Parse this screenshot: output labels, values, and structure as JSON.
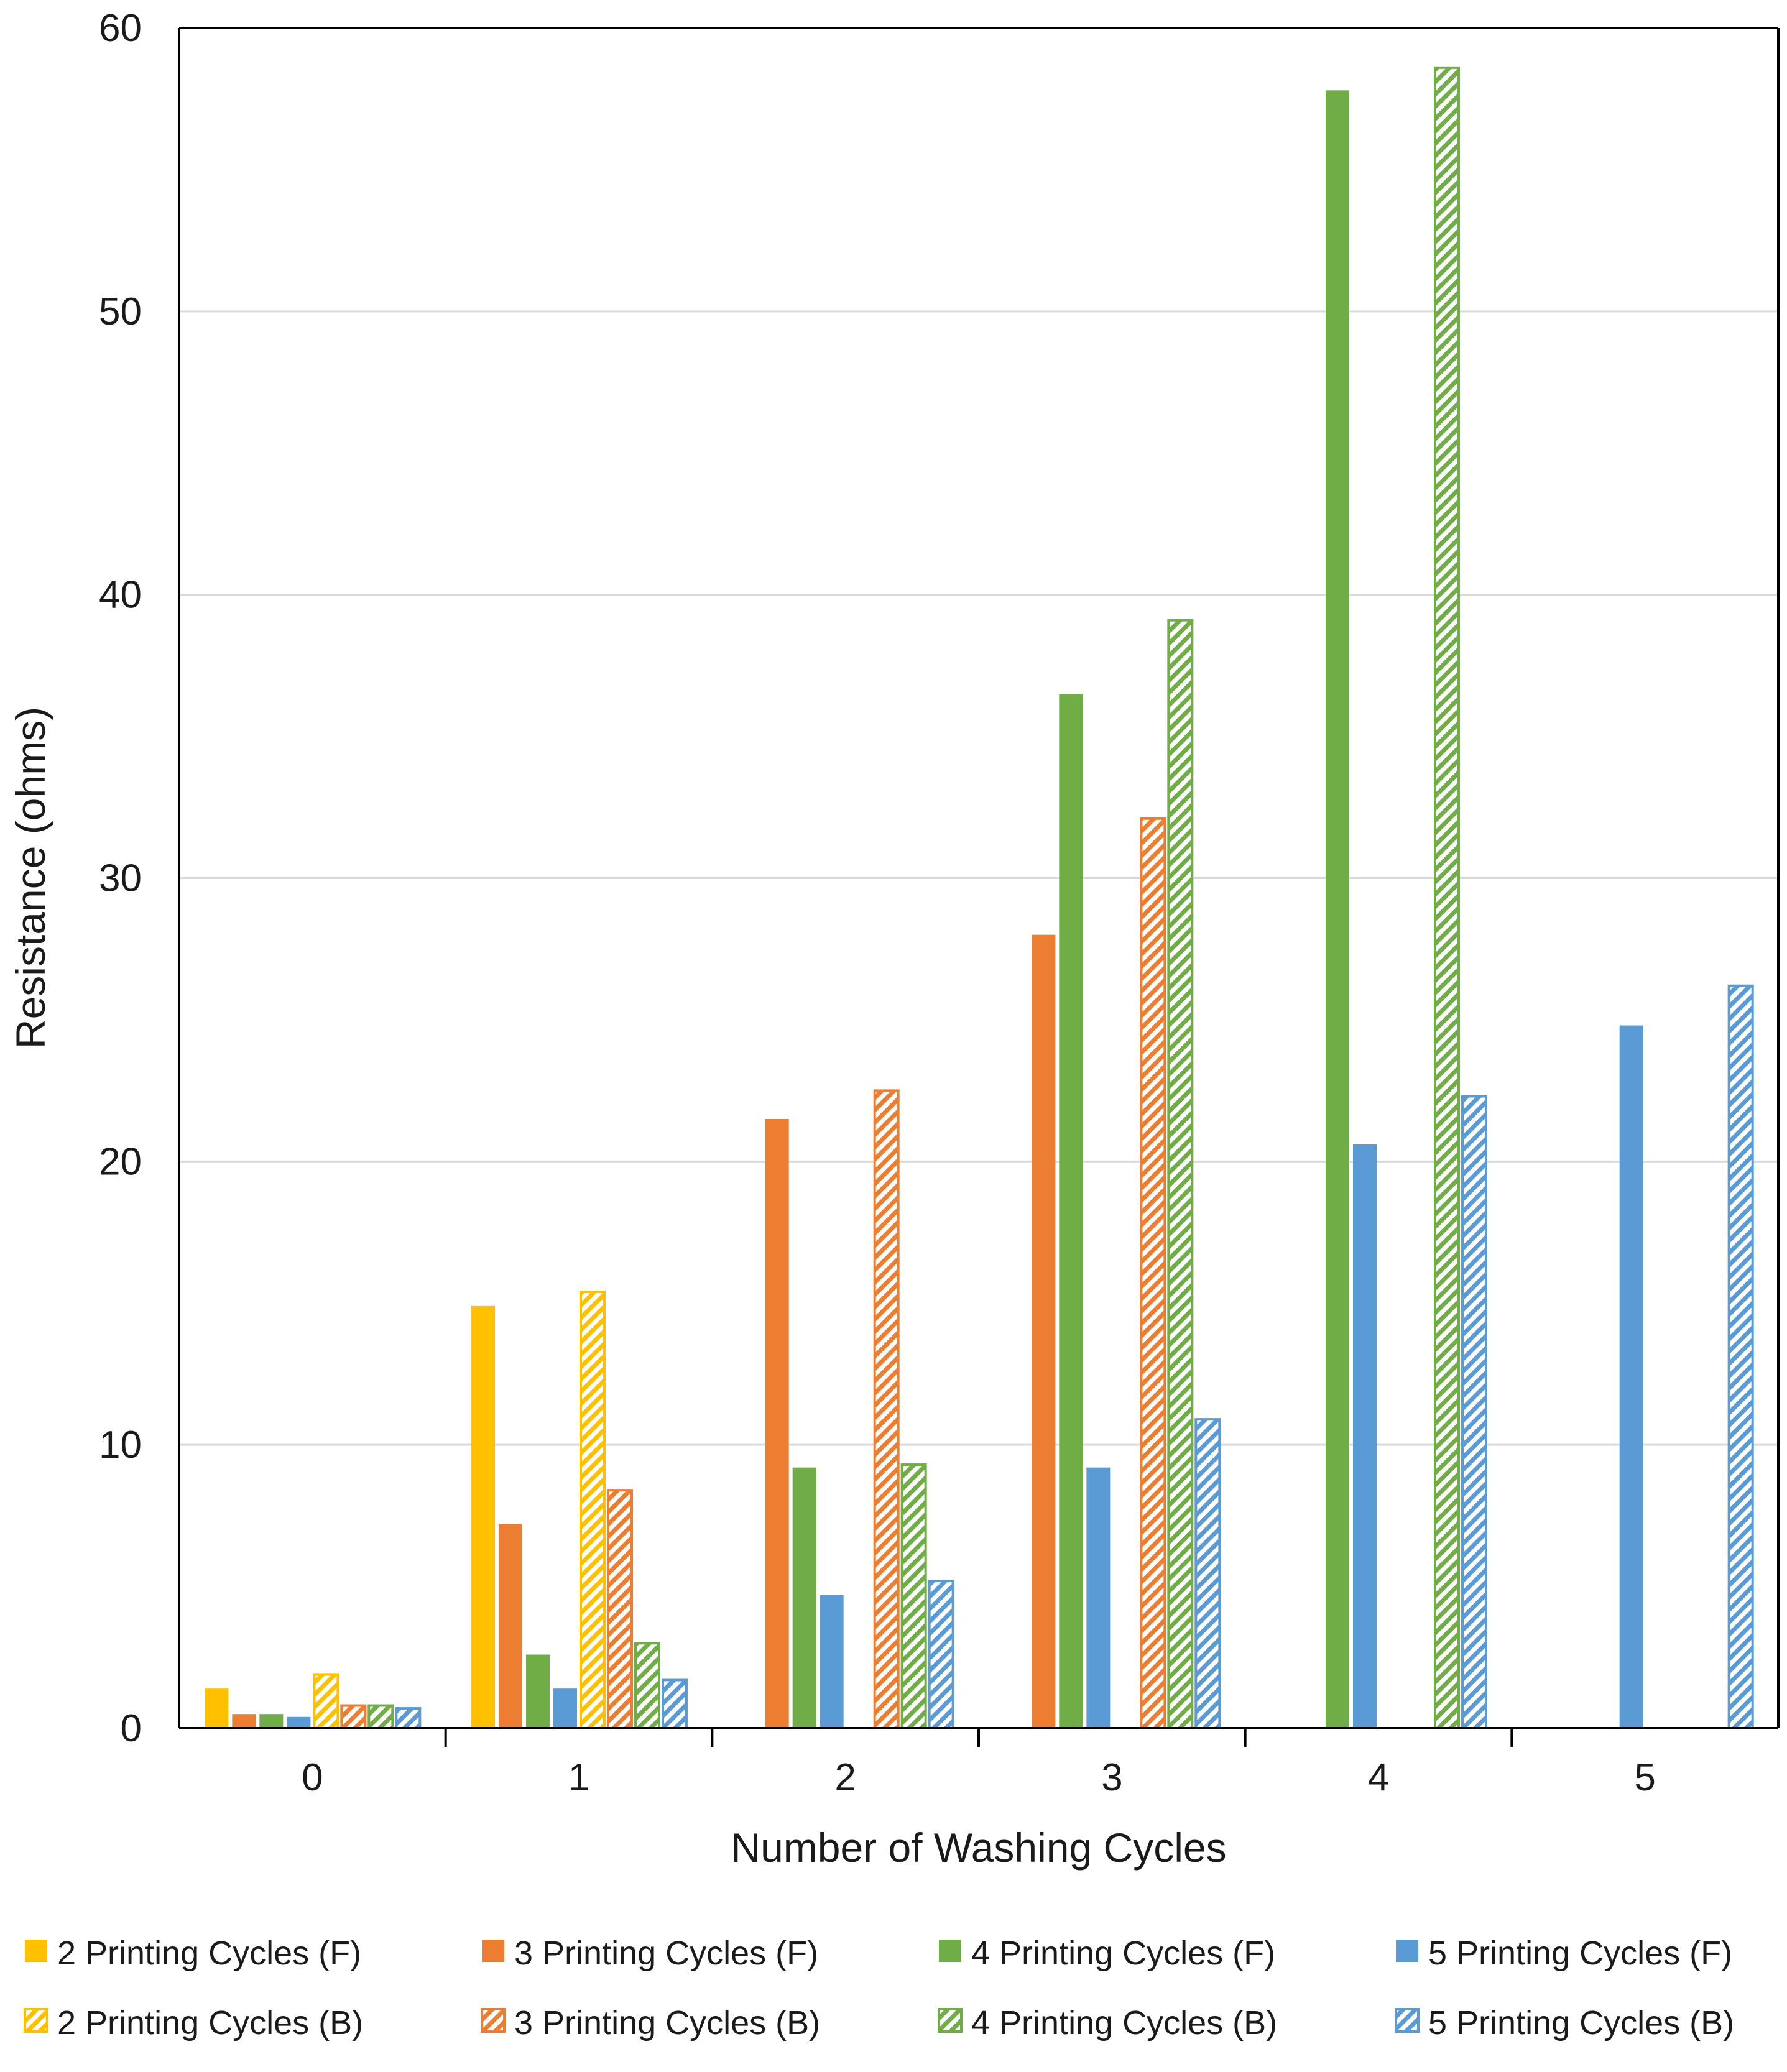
{
  "chart_data": {
    "type": "bar",
    "title": "",
    "xlabel": "Number of Washing Cycles",
    "ylabel": "Resistance (ohms)",
    "ylim": [
      0,
      60
    ],
    "yticks": [
      0,
      10,
      20,
      30,
      40,
      50,
      60
    ],
    "grid": true,
    "legend_position": "bottom",
    "categories": [
      "0",
      "1",
      "2",
      "3",
      "4",
      "5"
    ],
    "series": [
      {
        "name": "2 Printing Cycles (F)",
        "color": "#FFC000",
        "pattern": "solid",
        "values": [
          1.4,
          14.9,
          null,
          null,
          null,
          null
        ]
      },
      {
        "name": "3 Printing Cycles (F)",
        "color": "#ED7D31",
        "pattern": "solid",
        "values": [
          0.5,
          7.2,
          21.5,
          28.0,
          null,
          null
        ]
      },
      {
        "name": "4 Printing Cycles (F)",
        "color": "#70AD47",
        "pattern": "solid",
        "values": [
          0.5,
          2.6,
          9.2,
          36.5,
          57.8,
          null
        ]
      },
      {
        "name": "5 Printing Cycles (F)",
        "color": "#5B9BD5",
        "pattern": "solid",
        "values": [
          0.4,
          1.4,
          4.7,
          9.2,
          20.6,
          24.8
        ]
      },
      {
        "name": "2 Printing Cycles (B)",
        "color": "#FFC000",
        "pattern": "hatched",
        "values": [
          1.9,
          15.4,
          null,
          null,
          null,
          null
        ]
      },
      {
        "name": "3 Printing Cycles (B)",
        "color": "#ED7D31",
        "pattern": "hatched",
        "values": [
          0.8,
          8.4,
          22.5,
          32.1,
          null,
          null
        ]
      },
      {
        "name": "4 Printing Cycles (B)",
        "color": "#70AD47",
        "pattern": "hatched",
        "values": [
          0.8,
          3.0,
          9.3,
          39.1,
          58.6,
          null
        ]
      },
      {
        "name": "5 Printing Cycles (B)",
        "color": "#5B9BD5",
        "pattern": "hatched",
        "values": [
          0.7,
          1.7,
          5.2,
          10.9,
          22.3,
          26.2
        ]
      }
    ]
  }
}
